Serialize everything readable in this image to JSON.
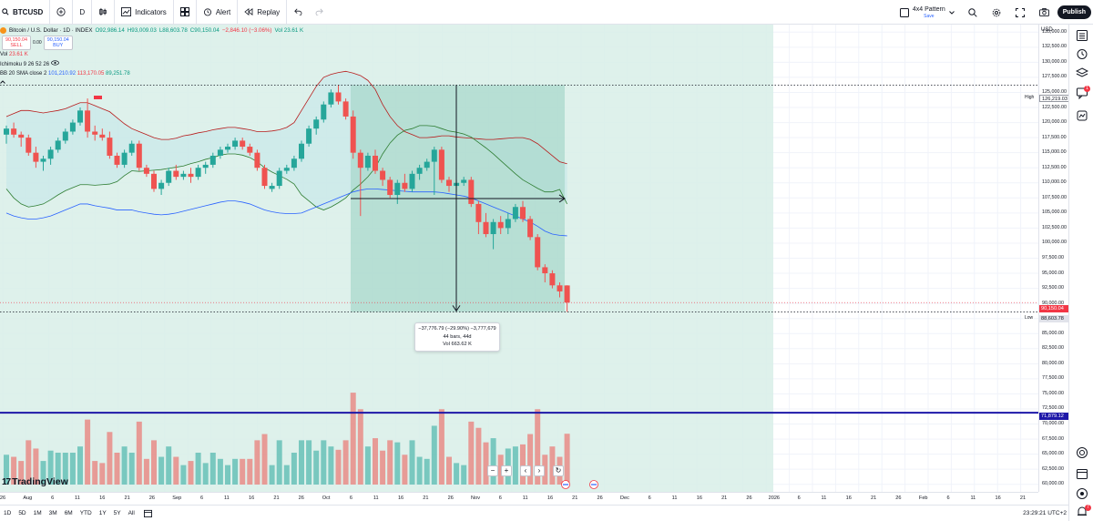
{
  "toolbar": {
    "symbol": "BTCUSD",
    "interval": "D",
    "indicators_label": "Indicators",
    "alert_label": "Alert",
    "replay_label": "Replay",
    "pattern_title": "4x4 Pattern",
    "pattern_sub": "Save",
    "publish_label": "Publish"
  },
  "legend": {
    "title": "Bitcoin / U.S. Dollar · 1D · INDEX",
    "open": "O92,986.14",
    "high": "H93,009.03",
    "low": "L88,603.78",
    "close": "C90,150.04",
    "change": "−2,846.10 (−3.06%)",
    "vol_inline": "Vol 23.61 K",
    "sell_price": "90,150.04",
    "sell_label": "SELL",
    "spread": "0.00",
    "buy_price": "90,150.04",
    "buy_label": "BUY",
    "vol_label": "Vol",
    "vol_value": "23.61 K",
    "ichimoku": "Ichimoku 9 26 52 26",
    "bb_label": "BB 20 SMA close 2",
    "bb_basis": "101,210.92",
    "bb_upper": "113,170.05",
    "bb_lower": "89,251.78"
  },
  "measure": {
    "line1": "−37,776.79 (−29.90%) −3,777,679",
    "line2": "44 bars, 44d",
    "line3": "Vol 663.62 K"
  },
  "logo": {
    "mark": "17",
    "text": "TradingView"
  },
  "price_scale": {
    "currency": "USD",
    "ticks": [
      "135,000.00",
      "132,500.00",
      "130,000.00",
      "127,500.00",
      "125,000.00",
      "122,500.00",
      "120,000.00",
      "117,500.00",
      "115,000.00",
      "112,500.00",
      "110,000.00",
      "107,500.00",
      "105,000.00",
      "102,500.00",
      "100,000.00",
      "97,500.00",
      "95,000.00",
      "92,500.00",
      "90,000.00",
      "87,500.00",
      "85,000.00",
      "82,500.00",
      "80,000.00",
      "77,500.00",
      "75,000.00",
      "72,500.00",
      "70,000.00",
      "67,500.00",
      "65,000.00",
      "62,500.00",
      "60,000.00"
    ],
    "high_tag": "High",
    "high_value": "126,219.03",
    "last_value": "90,150.04",
    "low_tag": "Low",
    "low_value": "88,603.78",
    "hline_value": "71,879.12"
  },
  "time_axis": {
    "ticks": [
      "26",
      "Aug",
      "6",
      "11",
      "16",
      "21",
      "26",
      "Sep",
      "6",
      "11",
      "16",
      "21",
      "26",
      "Oct",
      "6",
      "11",
      "16",
      "21",
      "26",
      "Nov",
      "6",
      "11",
      "16",
      "21",
      "26",
      "Dec",
      "6",
      "11",
      "16",
      "21",
      "26",
      "2026",
      "6",
      "11",
      "16",
      "21",
      "26",
      "Feb",
      "6",
      "11",
      "16",
      "21"
    ]
  },
  "bottom": {
    "ranges": [
      "1D",
      "5D",
      "1M",
      "3M",
      "6M",
      "YTD",
      "1Y",
      "5Y",
      "All"
    ],
    "time": "23:29:21 UTC+2"
  },
  "sidebar": {
    "notif1": "1",
    "notif2": "7"
  },
  "colors": {
    "up": "#26a69a",
    "down": "#ef5350",
    "zone": "#d8efe8",
    "measure_zone": "#a9d8cc",
    "hline": "#1e18a8",
    "bb_basis": "#2962ff",
    "bb_band": "#b71c1c"
  },
  "chart_data": {
    "type": "candlestick",
    "interval": "1D",
    "y_range": [
      58750,
      136250
    ],
    "candles": [
      [
        118000,
        119500,
        116500,
        119000
      ],
      [
        119000,
        120000,
        117500,
        118000
      ],
      [
        118000,
        118500,
        116000,
        117500
      ],
      [
        117500,
        118000,
        114500,
        115000
      ],
      [
        115000,
        116000,
        112500,
        113500
      ],
      [
        113500,
        114500,
        112000,
        114000
      ],
      [
        114000,
        116000,
        113000,
        115500
      ],
      [
        115500,
        117500,
        115000,
        117000
      ],
      [
        117000,
        119000,
        116500,
        118500
      ],
      [
        118500,
        120500,
        118000,
        120000
      ],
      [
        120000,
        122500,
        119500,
        122000
      ],
      [
        122000,
        124000,
        117500,
        118500
      ],
      [
        118500,
        119500,
        117000,
        118000
      ],
      [
        118000,
        119000,
        117000,
        117500
      ],
      [
        117500,
        118500,
        114000,
        114500
      ],
      [
        114500,
        115000,
        112500,
        113000
      ],
      [
        113000,
        115500,
        112500,
        115000
      ],
      [
        115000,
        117000,
        114500,
        116500
      ],
      [
        116500,
        117000,
        112000,
        112500
      ],
      [
        112500,
        113000,
        111000,
        111500
      ],
      [
        111500,
        112000,
        108500,
        109000
      ],
      [
        109000,
        110500,
        108000,
        110000
      ],
      [
        110000,
        112500,
        109500,
        112000
      ],
      [
        112000,
        113000,
        110500,
        111000
      ],
      [
        111000,
        112000,
        110500,
        111500
      ],
      [
        111500,
        112500,
        110000,
        111000
      ],
      [
        111000,
        113000,
        110500,
        112500
      ],
      [
        112500,
        113500,
        111500,
        113000
      ],
      [
        113000,
        115000,
        112500,
        114500
      ],
      [
        114500,
        116000,
        114000,
        115500
      ],
      [
        115500,
        116500,
        115000,
        116000
      ],
      [
        116000,
        117500,
        115500,
        117000
      ],
      [
        117000,
        117500,
        115500,
        116000
      ],
      [
        116000,
        116500,
        114500,
        115000
      ],
      [
        115000,
        115500,
        112000,
        112500
      ],
      [
        112500,
        113000,
        109000,
        109500
      ],
      [
        109000,
        110000,
        108500,
        109500
      ],
      [
        109500,
        112500,
        109000,
        112000
      ],
      [
        112000,
        113000,
        111500,
        112500
      ],
      [
        112500,
        114500,
        112000,
        114000
      ],
      [
        114000,
        117000,
        113500,
        116500
      ],
      [
        116500,
        119500,
        116000,
        119000
      ],
      [
        119000,
        121000,
        118000,
        120500
      ],
      [
        120500,
        123500,
        120000,
        123000
      ],
      [
        123000,
        125500,
        122500,
        125000
      ],
      [
        125000,
        126200,
        123000,
        123500
      ],
      [
        123500,
        124000,
        120500,
        121000
      ],
      [
        121000,
        122000,
        114000,
        115000
      ],
      [
        115000,
        115500,
        104500,
        112500
      ],
      [
        112500,
        115000,
        112000,
        114500
      ],
      [
        114500,
        115500,
        111500,
        112000
      ],
      [
        112000,
        112500,
        109500,
        110500
      ],
      [
        110500,
        111000,
        107500,
        108000
      ],
      [
        108000,
        110500,
        106500,
        110000
      ],
      [
        110000,
        111500,
        108500,
        109000
      ],
      [
        109000,
        112000,
        108500,
        111500
      ],
      [
        111500,
        113000,
        110500,
        112500
      ],
      [
        112500,
        114000,
        112000,
        113500
      ],
      [
        113500,
        116000,
        108000,
        115500
      ],
      [
        115500,
        116000,
        110000,
        110500
      ],
      [
        110500,
        111000,
        108500,
        109500
      ],
      [
        109500,
        110500,
        108500,
        110000
      ],
      [
        110000,
        111000,
        109500,
        110500
      ],
      [
        110500,
        111000,
        106000,
        106500
      ],
      [
        106500,
        107000,
        101500,
        103500
      ],
      [
        103500,
        105000,
        101000,
        101500
      ],
      [
        101500,
        104000,
        99000,
        103500
      ],
      [
        103500,
        104500,
        101500,
        102500
      ],
      [
        102500,
        105000,
        101500,
        104000
      ],
      [
        104000,
        106500,
        103500,
        106000
      ],
      [
        106000,
        107000,
        103500,
        104000
      ],
      [
        104000,
        104500,
        100500,
        101000
      ],
      [
        101000,
        101500,
        95500,
        96000
      ],
      [
        96000,
        96500,
        93500,
        95000
      ],
      [
        95000,
        95500,
        92500,
        93000
      ],
      [
        93000,
        93500,
        91000,
        92000
      ],
      [
        92986,
        93009,
        88603,
        90150
      ]
    ],
    "volume_bars": "per candle, unlabeled",
    "bb_basis": [
      105000,
      104500,
      104200,
      104000,
      104000,
      104200,
      104500,
      105000,
      105500,
      106000,
      106500,
      106500,
      106200,
      106000,
      105800,
      105500,
      105500,
      105500,
      105200,
      105000,
      104800,
      104700,
      104800,
      105000,
      105300,
      105600,
      105900,
      106200,
      106500,
      106800,
      107000,
      107000,
      106800,
      106500,
      106000,
      105500,
      105200,
      105000,
      104900,
      104900,
      105000,
      105500,
      106000,
      106500,
      107000,
      107500,
      108000,
      108500,
      108800,
      109000,
      109000,
      108900,
      108800,
      108700,
      108600,
      108500,
      108500,
      108500,
      108500,
      108400,
      108200,
      108000,
      107800,
      107500,
      107000,
      106500,
      106000,
      105500,
      105000,
      104500,
      104000,
      103500,
      102800,
      102000,
      101500,
      101300,
      101210
    ],
    "bb_upper": [
      121000,
      121500,
      122000,
      122000,
      121800,
      121600,
      121800,
      122000,
      122300,
      122800,
      123300,
      123300,
      122800,
      122300,
      121800,
      120800,
      119800,
      119000,
      118500,
      118000,
      117500,
      117200,
      117200,
      117400,
      117800,
      118000,
      118300,
      118500,
      118800,
      119000,
      119200,
      119200,
      119000,
      118800,
      118500,
      118500,
      118600,
      118800,
      119200,
      120000,
      122000,
      124000,
      126000,
      127500,
      128000,
      128300,
      128500,
      128200,
      127800,
      127000,
      125500,
      123000,
      121000,
      119500,
      118500,
      118000,
      117500,
      117500,
      117600,
      117800,
      117800,
      117600,
      117500,
      117400,
      117300,
      117200,
      117200,
      117300,
      117400,
      117500,
      117500,
      117200,
      116500,
      115500,
      114500,
      113500,
      113170
    ],
    "bb_lower": [
      109000,
      107500,
      106500,
      106000,
      106200,
      106500,
      107200,
      108000,
      108700,
      109200,
      109700,
      109700,
      109600,
      109700,
      109800,
      110200,
      111200,
      112000,
      111900,
      112000,
      112100,
      112200,
      112400,
      112600,
      112800,
      113200,
      113500,
      113900,
      114200,
      114600,
      114800,
      114800,
      114600,
      114200,
      113500,
      112500,
      111800,
      111200,
      110600,
      109800,
      108000,
      107000,
      106000,
      105500,
      106000,
      106700,
      107500,
      108800,
      109800,
      111000,
      112500,
      114800,
      116600,
      117900,
      118700,
      119000,
      119500,
      119500,
      119400,
      119000,
      118600,
      118400,
      118100,
      117600,
      116700,
      115800,
      114800,
      113700,
      112600,
      111500,
      110500,
      109800,
      109100,
      108500,
      108500,
      108900,
      89252
    ]
  }
}
